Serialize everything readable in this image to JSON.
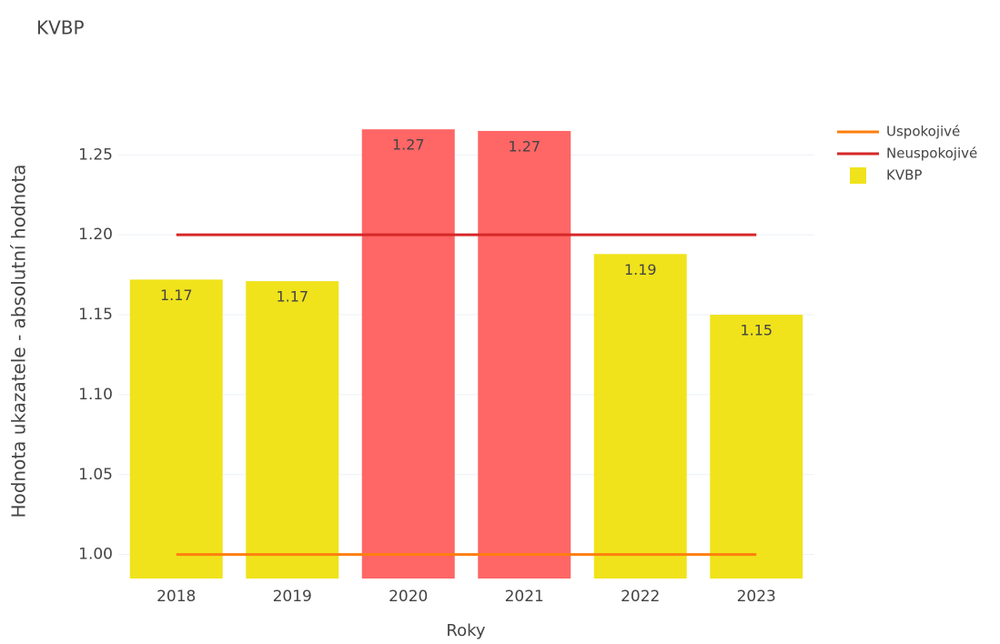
{
  "chart_data": {
    "type": "bar",
    "title": "KVBP",
    "x_label": "Roky",
    "y_label": "Hodnota ukazatele - absolutní hodnota",
    "categories": [
      "2018",
      "2019",
      "2020",
      "2021",
      "2022",
      "2023"
    ],
    "series": [
      {
        "name": "Uspokojivé",
        "type": "line",
        "color": "#ff7f0e",
        "values": [
          1.0,
          1.0,
          1.0,
          1.0,
          1.0,
          1.0
        ]
      },
      {
        "name": "Neuspokojivé",
        "type": "line",
        "color": "#d62728",
        "values": [
          1.2,
          1.2,
          1.2,
          1.2,
          1.2,
          1.2
        ]
      },
      {
        "name": "KVBP",
        "type": "bar",
        "color": "#f0e31c",
        "colors": [
          "#f0e31c",
          "#f0e31c",
          "#ff6666",
          "#ff6666",
          "#f0e31c",
          "#f0e31c"
        ],
        "values": [
          1.172,
          1.171,
          1.266,
          1.265,
          1.188,
          1.15
        ],
        "value_labels": [
          "1.17",
          "1.17",
          "1.27",
          "1.27",
          "1.19",
          "1.15"
        ]
      }
    ],
    "ylim": [
      0.985,
      1.29
    ],
    "yticks": [
      {
        "value": 1.0,
        "label": "1.00"
      },
      {
        "value": 1.05,
        "label": "1.05"
      },
      {
        "value": 1.1,
        "label": "1.10"
      },
      {
        "value": 1.15,
        "label": "1.15"
      },
      {
        "value": 1.2,
        "label": "1.20"
      },
      {
        "value": 1.25,
        "label": "1.25"
      }
    ],
    "grid": true,
    "legend": "top-right"
  }
}
